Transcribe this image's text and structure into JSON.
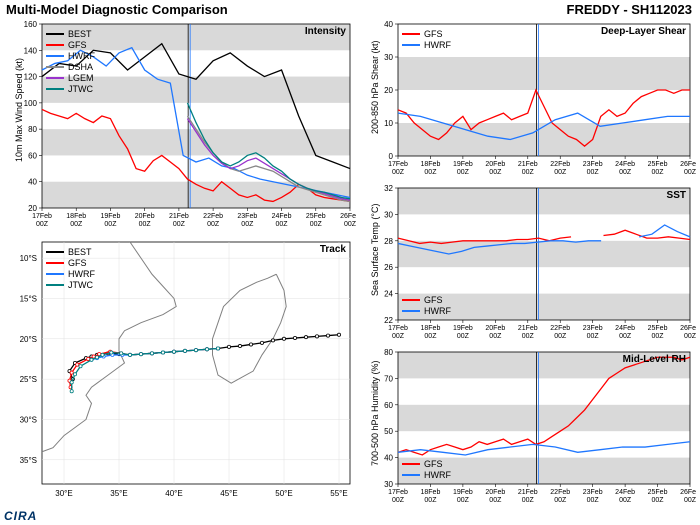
{
  "header": {
    "main_title": "Multi-Model Diagnostic Comparison",
    "storm_title": "FREDDY - SH112023"
  },
  "footer": {
    "logo": "CIRA"
  },
  "time_axis": {
    "labels": [
      "17Feb\n00Z",
      "18Feb\n00Z",
      "19Feb\n00Z",
      "20Feb\n00Z",
      "21Feb\n00Z",
      "22Feb\n00Z",
      "23Feb\n00Z",
      "24Feb\n00Z",
      "25Feb\n00Z",
      "26Feb\n00Z"
    ],
    "x": [
      0,
      1,
      2,
      3,
      4,
      5,
      6,
      7,
      8,
      9
    ],
    "forecast_start_x": 4.3
  },
  "colors": {
    "BEST": "#000000",
    "GFS": "#ff0000",
    "HWRF": "#1f77ff",
    "DSHA": "#888888",
    "LGEM": "#9933cc",
    "JTWC": "#008080",
    "band": "#d9d9d9",
    "grid": "#c0c0c0",
    "bg": "#ffffff"
  },
  "intensity": {
    "title": "Intensity",
    "ylabel": "10m Max Wind Speed (kt)",
    "ylim": [
      20,
      160
    ],
    "yticks": [
      20,
      40,
      60,
      80,
      100,
      120,
      140,
      160
    ],
    "legend": [
      "BEST",
      "GFS",
      "HWRF",
      "DSHA",
      "LGEM",
      "JTWC"
    ],
    "series": {
      "BEST": [
        120,
        130,
        128,
        140,
        138,
        125,
        135,
        145,
        122,
        118,
        132,
        138,
        128,
        120,
        125,
        90,
        60,
        55,
        50
      ],
      "GFS": [
        95,
        92,
        90,
        88,
        92,
        88,
        85,
        90,
        88,
        75,
        65,
        50,
        48,
        56,
        60,
        55,
        50,
        42,
        38,
        35,
        33,
        40,
        35,
        30,
        28,
        30,
        26,
        25,
        28,
        32,
        38,
        35,
        30,
        28,
        27,
        26,
        25
      ],
      "HWRF": [
        125,
        130,
        132,
        140,
        135,
        128,
        138,
        142,
        125,
        118,
        115,
        60,
        55,
        58,
        52,
        50,
        45,
        42,
        40,
        38,
        36,
        34,
        32,
        30,
        28
      ],
      "DSHA": [
        null,
        null,
        null,
        null,
        null,
        null,
        null,
        null,
        null,
        null,
        null,
        null,
        null,
        null,
        null,
        null,
        null,
        90,
        80,
        70,
        62,
        55,
        50,
        48,
        50,
        52,
        50,
        48,
        44,
        40,
        36,
        34,
        32,
        30,
        28,
        26,
        25
      ],
      "LGEM": [
        null,
        null,
        null,
        null,
        null,
        null,
        null,
        null,
        null,
        null,
        null,
        null,
        null,
        null,
        null,
        null,
        null,
        88,
        78,
        68,
        60,
        54,
        50,
        52,
        56,
        58,
        54,
        50,
        46,
        42,
        38,
        35,
        33,
        31,
        29,
        27,
        26
      ],
      "JTWC": [
        null,
        null,
        null,
        null,
        null,
        null,
        null,
        null,
        null,
        null,
        null,
        null,
        null,
        null,
        null,
        null,
        null,
        100,
        85,
        72,
        62,
        55,
        52,
        55,
        60,
        62,
        58,
        52,
        48,
        42,
        38,
        35,
        33,
        32,
        30,
        28,
        27
      ]
    }
  },
  "shear": {
    "title": "Deep-Layer Shear",
    "ylabel": "200-850 hPa Shear (kt)",
    "ylim": [
      0,
      40
    ],
    "yticks": [
      0,
      10,
      20,
      30,
      40
    ],
    "legend": [
      "GFS",
      "HWRF"
    ],
    "series": {
      "GFS": [
        14,
        13,
        10,
        8,
        6,
        5,
        7,
        10,
        12,
        8,
        10,
        11,
        12,
        13,
        11,
        12,
        13,
        20,
        15,
        10,
        8,
        6,
        5,
        3,
        5,
        12,
        14,
        12,
        13,
        16,
        18,
        19,
        20,
        20,
        19,
        20,
        20
      ],
      "HWRF": [
        13,
        12,
        10,
        8,
        6,
        5,
        7,
        11,
        13,
        9,
        10,
        11,
        12,
        12
      ]
    }
  },
  "sst": {
    "title": "SST",
    "ylabel": "Sea Surface Temp (°C)",
    "ylim": [
      22,
      32
    ],
    "yticks": [
      22,
      24,
      26,
      28,
      30,
      32
    ],
    "legend": [
      "GFS",
      "HWRF"
    ],
    "series": {
      "GFS": [
        28.2,
        28.0,
        27.8,
        27.9,
        27.8,
        27.9,
        28.0,
        28.0,
        28.0,
        28.0,
        28.0,
        28.1,
        28.1,
        28.2,
        28.0,
        28.2,
        28.3,
        null,
        null,
        28.4,
        28.5,
        28.8,
        28.5,
        28.2,
        28.2,
        28.3,
        28.2,
        28.1
      ],
      "HWRF": [
        27.8,
        27.6,
        27.4,
        27.2,
        27.0,
        27.2,
        27.5,
        27.6,
        27.7,
        27.8,
        27.8,
        27.9,
        28.0,
        28.0,
        27.9,
        28.0,
        28.0,
        null,
        null,
        28.3,
        28.5,
        29.2,
        28.7,
        28.3
      ]
    }
  },
  "rh": {
    "title": "Mid-Level RH",
    "ylabel": "700-500 hPa Humidity (%)",
    "ylim": [
      30,
      80
    ],
    "yticks": [
      30,
      40,
      50,
      60,
      70,
      80
    ],
    "legend": [
      "GFS",
      "HWRF"
    ],
    "series": {
      "GFS": [
        42,
        43,
        42,
        41,
        43,
        44,
        45,
        44,
        43,
        44,
        46,
        45,
        46,
        47,
        45,
        46,
        47,
        45,
        46,
        48,
        50,
        52,
        55,
        58,
        62,
        66,
        70,
        72,
        74,
        75,
        76,
        77,
        78,
        78,
        78,
        77,
        78
      ],
      "HWRF": [
        42,
        43,
        42,
        41,
        43,
        44,
        45,
        44,
        42,
        43,
        44,
        44,
        45,
        46
      ]
    }
  },
  "track": {
    "title": "Track",
    "xlim": [
      28,
      56
    ],
    "ylim": [
      38,
      8
    ],
    "xticks": [
      30,
      35,
      40,
      45,
      50,
      55
    ],
    "xticklabels": [
      "30°E",
      "35°E",
      "40°E",
      "45°E",
      "50°E",
      "55°E"
    ],
    "yticks": [
      10,
      15,
      20,
      25,
      30,
      35
    ],
    "yticklabels": [
      "10°S",
      "15°S",
      "20°S",
      "25°S",
      "30°S",
      "35°S"
    ],
    "legend": [
      "BEST",
      "GFS",
      "HWRF",
      "JTWC"
    ],
    "coast": {
      "africa": [
        [
          36,
          8
        ],
        [
          37,
          10
        ],
        [
          38,
          12
        ],
        [
          39,
          13.5
        ],
        [
          40,
          15
        ],
        [
          40.2,
          16
        ],
        [
          39,
          17
        ],
        [
          37,
          18
        ],
        [
          35.5,
          19
        ],
        [
          35,
          20
        ],
        [
          35,
          21.5
        ],
        [
          35.5,
          23
        ],
        [
          34,
          24.5
        ],
        [
          33,
          25.5
        ],
        [
          32.5,
          26
        ],
        [
          32,
          27
        ],
        [
          32.5,
          28
        ],
        [
          32,
          30
        ],
        [
          30,
          32
        ],
        [
          29,
          33.5
        ],
        [
          28,
          34
        ]
      ],
      "madagascar": [
        [
          49.3,
          12
        ],
        [
          50,
          14
        ],
        [
          50.2,
          16
        ],
        [
          49.7,
          18
        ],
        [
          49,
          20
        ],
        [
          48,
          22
        ],
        [
          47.2,
          24
        ],
        [
          45.2,
          25.5
        ],
        [
          44,
          24.5
        ],
        [
          43.5,
          22
        ],
        [
          43.5,
          20
        ],
        [
          44,
          18
        ],
        [
          44.5,
          16
        ],
        [
          46,
          14
        ],
        [
          47.5,
          13
        ],
        [
          48.5,
          12.5
        ],
        [
          49.3,
          12
        ]
      ]
    },
    "series": {
      "BEST": [
        [
          55,
          19.5
        ],
        [
          54,
          19.6
        ],
        [
          53,
          19.7
        ],
        [
          52,
          19.8
        ],
        [
          51,
          19.9
        ],
        [
          50,
          20.0
        ],
        [
          49,
          20.2
        ],
        [
          48,
          20.5
        ],
        [
          47,
          20.7
        ],
        [
          46,
          20.9
        ],
        [
          45,
          21.0
        ],
        [
          44,
          21.2
        ],
        [
          43,
          21.3
        ],
        [
          42,
          21.4
        ],
        [
          41,
          21.5
        ],
        [
          40,
          21.6
        ],
        [
          39,
          21.7
        ],
        [
          38,
          21.8
        ],
        [
          37,
          21.9
        ],
        [
          36,
          22.0
        ],
        [
          35,
          21.9
        ],
        [
          34,
          21.8
        ],
        [
          33,
          22.0
        ],
        [
          32.5,
          22.2
        ],
        [
          32,
          22.4
        ],
        [
          31,
          23
        ],
        [
          30.5,
          24
        ],
        [
          30.8,
          25
        ]
      ],
      "GFS": [
        [
          44,
          21.2
        ],
        [
          43,
          21.3
        ],
        [
          42,
          21.4
        ],
        [
          41,
          21.5
        ],
        [
          40,
          21.6
        ],
        [
          39,
          21.7
        ],
        [
          38,
          21.8
        ],
        [
          37,
          21.9
        ],
        [
          36,
          22.0
        ],
        [
          35.2,
          21.8
        ],
        [
          34.2,
          21.6
        ],
        [
          33.2,
          21.9
        ],
        [
          32.7,
          22.2
        ],
        [
          32.2,
          22.5
        ],
        [
          31.2,
          23.2
        ],
        [
          30.7,
          24.2
        ],
        [
          30.5,
          25.2
        ],
        [
          30.6,
          26
        ]
      ],
      "HWRF": [
        [
          44,
          21.2
        ],
        [
          43,
          21.3
        ],
        [
          42,
          21.4
        ],
        [
          41,
          21.5
        ],
        [
          40,
          21.6
        ],
        [
          39,
          21.7
        ],
        [
          38,
          21.8
        ],
        [
          37,
          21.9
        ],
        [
          36,
          22.0
        ],
        [
          35.3,
          22.0
        ],
        [
          34.4,
          22.0
        ],
        [
          33.6,
          22.2
        ],
        [
          33,
          22.4
        ],
        [
          32.5,
          22.6
        ]
      ],
      "JTWC": [
        [
          44,
          21.2
        ],
        [
          43,
          21.3
        ],
        [
          42,
          21.4
        ],
        [
          41,
          21.5
        ],
        [
          40,
          21.6
        ],
        [
          39,
          21.7
        ],
        [
          38,
          21.8
        ],
        [
          37,
          21.9
        ],
        [
          36,
          22.0
        ],
        [
          35.2,
          21.8
        ],
        [
          34.3,
          21.7
        ],
        [
          33.5,
          22.0
        ],
        [
          33,
          22.3
        ],
        [
          32.5,
          22.6
        ],
        [
          31.5,
          23.4
        ],
        [
          31,
          24.4
        ],
        [
          30.7,
          25.4
        ],
        [
          30.7,
          26.5
        ]
      ]
    }
  }
}
